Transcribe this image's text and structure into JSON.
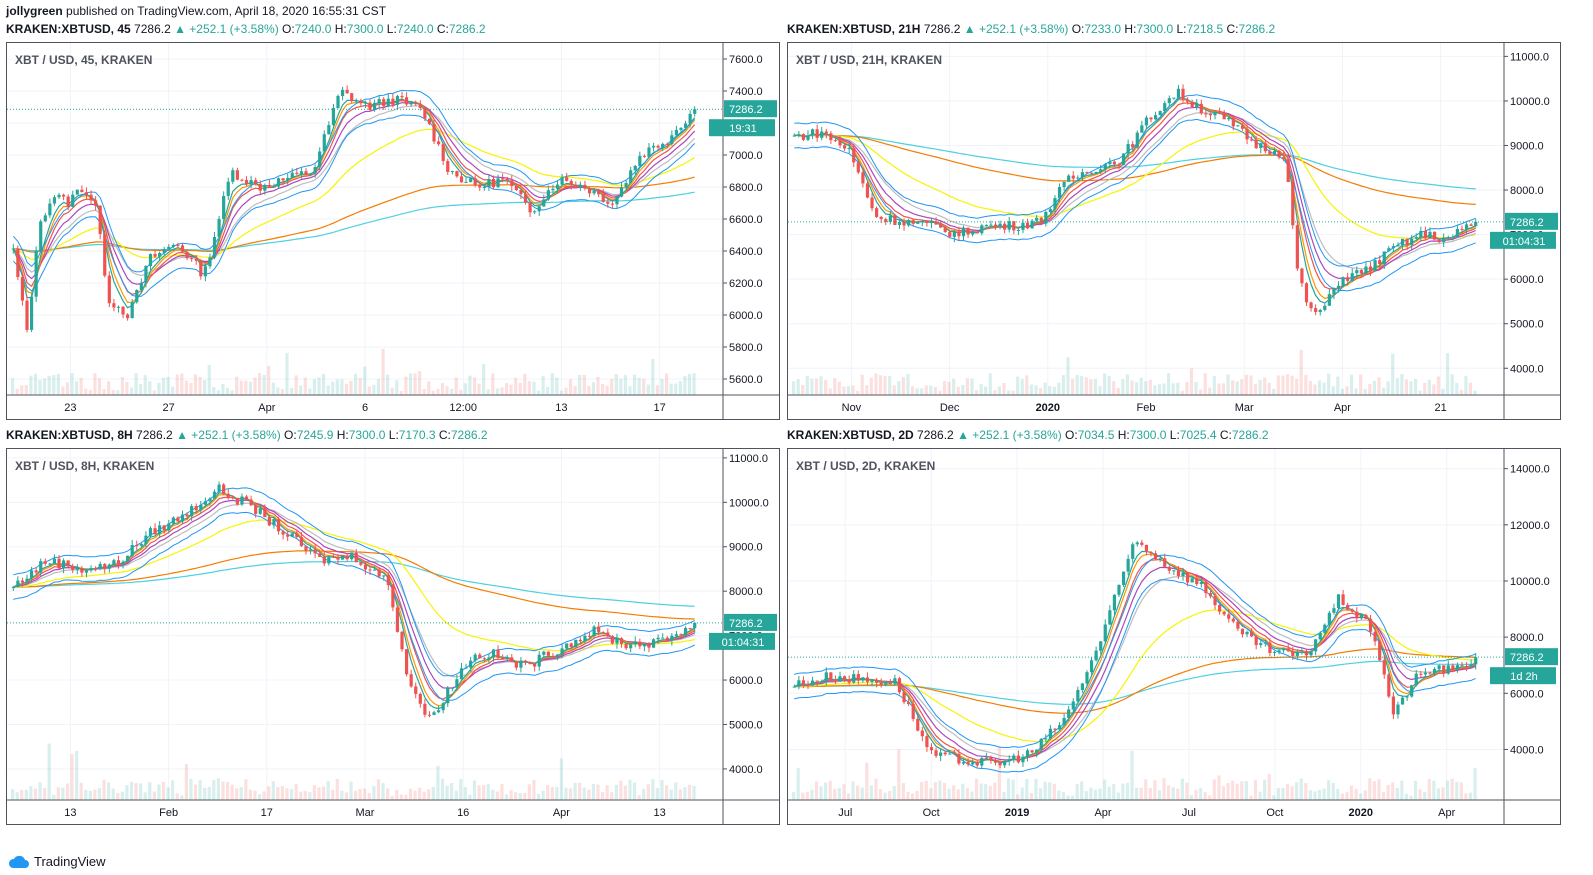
{
  "header": {
    "user": "jollygreen",
    "published": "published on TradingView.com, April 18, 2020 16:55:31 CST"
  },
  "footer": {
    "brand": "TradingView"
  },
  "colors": {
    "up": "#26a69a",
    "down": "#ef5350",
    "grid": "#f0f3fa",
    "axis": "#50535e",
    "ema200": "#f57c00",
    "sma200": "#4dd0e1",
    "ema50": "#f5f500",
    "band": "#2196f3"
  },
  "chart_data": [
    {
      "type": "candlestick",
      "symbol": "KRAKEN:XBTUSD",
      "interval": "45",
      "legend": "XBT / USD, 45, KRAKEN",
      "last": "7286.2",
      "change": "+252.1 (+3.58%)",
      "open": "7240.0",
      "high": "7300.0",
      "low": "7240.0",
      "close": "7286.2",
      "countdown": "19:31",
      "ylim": [
        5500,
        7700
      ],
      "yticks": [
        "7600.0",
        "7400.0",
        "7200.0",
        "7000.0",
        "6800.0",
        "6600.0",
        "6400.0",
        "6200.0",
        "6000.0",
        "5800.0",
        "5600.0"
      ],
      "xticks": [
        "23",
        "27",
        "Apr",
        "6",
        "12:00",
        "13",
        "17"
      ],
      "xticks_bold": [
        false,
        false,
        false,
        false,
        false,
        false,
        false
      ],
      "x": [
        0,
        2,
        4,
        6,
        8,
        10,
        12,
        14,
        17,
        20,
        24,
        28,
        32,
        36,
        40,
        44,
        48,
        52,
        56,
        60,
        64,
        68,
        72,
        76,
        80,
        84,
        88,
        92,
        96,
        100
      ],
      "price": [
        6400,
        5900,
        6600,
        6750,
        6700,
        6800,
        6700,
        6100,
        6000,
        6350,
        6450,
        6250,
        6900,
        6800,
        6850,
        6900,
        7400,
        7300,
        7350,
        7280,
        6900,
        6800,
        6850,
        6650,
        6850,
        6800,
        6700,
        7000,
        7100,
        7286
      ]
    },
    {
      "type": "candlestick",
      "symbol": "KRAKEN:XBTUSD",
      "interval": "21H",
      "legend": "XBT / USD, 21H, KRAKEN",
      "last": "7286.2",
      "change": "+252.1 (+3.58%)",
      "open": "7233.0",
      "high": "7300.0",
      "low": "7218.5",
      "close": "7286.2",
      "countdown": "01:04:31",
      "ylim": [
        3400,
        11300
      ],
      "yticks": [
        "11000.0",
        "10000.0",
        "9000.0",
        "8000.0",
        "7000.0",
        "6000.0",
        "5000.0",
        "4000.0"
      ],
      "xticks": [
        "Nov",
        "Dec",
        "2020",
        "Feb",
        "Mar",
        "Apr",
        "21"
      ],
      "xticks_bold": [
        false,
        false,
        true,
        false,
        false,
        false,
        false
      ],
      "x": [
        0,
        4,
        8,
        12,
        16,
        20,
        24,
        28,
        32,
        36,
        40,
        44,
        48,
        52,
        56,
        60,
        64,
        68,
        72,
        74,
        76,
        78,
        80,
        84,
        88,
        92,
        96,
        100
      ],
      "price": [
        9200,
        9300,
        8900,
        7400,
        7300,
        7200,
        7000,
        7200,
        7200,
        7300,
        8200,
        8500,
        8700,
        9600,
        10200,
        9800,
        9500,
        9000,
        8800,
        6000,
        5200,
        5400,
        6000,
        6200,
        6700,
        7000,
        6900,
        7286
      ]
    },
    {
      "type": "candlestick",
      "symbol": "KRAKEN:XBTUSD",
      "interval": "8H",
      "legend": "XBT / USD, 8H, KRAKEN",
      "last": "7286.2",
      "change": "+252.1 (+3.58%)",
      "open": "7245.9",
      "high": "7300.0",
      "low": "7170.3",
      "close": "7286.2",
      "countdown": "01:04:31",
      "ylim": [
        3300,
        11200
      ],
      "yticks": [
        "11000.0",
        "10000.0",
        "9000.0",
        "8000.0",
        "7000.0",
        "6000.0",
        "5000.0",
        "4000.0"
      ],
      "xticks": [
        "13",
        "Feb",
        "17",
        "Mar",
        "16",
        "Apr",
        "13"
      ],
      "xticks_bold": [
        false,
        false,
        false,
        false,
        false,
        false,
        false
      ],
      "x": [
        0,
        5,
        10,
        15,
        20,
        25,
        30,
        35,
        40,
        45,
        50,
        55,
        58,
        61,
        64,
        67,
        70,
        75,
        80,
        85,
        90,
        95,
        100
      ],
      "price": [
        8100,
        8700,
        8500,
        8600,
        9300,
        9700,
        10300,
        9900,
        9300,
        8700,
        8800,
        8200,
        6000,
        5100,
        5800,
        6500,
        6600,
        6300,
        6700,
        7100,
        6800,
        6850,
        7286
      ]
    },
    {
      "type": "candlestick",
      "symbol": "KRAKEN:XBTUSD",
      "interval": "2D",
      "legend": "XBT / USD, 2D, KRAKEN",
      "last": "7286.2",
      "change": "+252.1 (+3.58%)",
      "open": "7034.5",
      "high": "7300.0",
      "low": "7025.4",
      "close": "7286.2",
      "countdown": "1d 2h",
      "ylim": [
        2200,
        14700
      ],
      "yticks": [
        "14000.0",
        "12000.0",
        "10000.0",
        "8000.0",
        "6000.0",
        "4000.0"
      ],
      "xticks": [
        "Jul",
        "Oct",
        "2019",
        "Apr",
        "Jul",
        "Oct",
        "2020",
        "Apr"
      ],
      "xticks_bold": [
        false,
        false,
        true,
        false,
        false,
        false,
        true,
        false
      ],
      "x": [
        0,
        5,
        10,
        15,
        20,
        25,
        30,
        35,
        40,
        45,
        50,
        55,
        60,
        65,
        70,
        75,
        80,
        85,
        88,
        91,
        94,
        97,
        100
      ],
      "price": [
        6300,
        6600,
        6500,
        6400,
        3800,
        3600,
        3500,
        3900,
        5200,
        7900,
        11500,
        10500,
        9800,
        8200,
        7500,
        7300,
        9400,
        8200,
        5200,
        6500,
        6900,
        6800,
        7286
      ]
    }
  ]
}
